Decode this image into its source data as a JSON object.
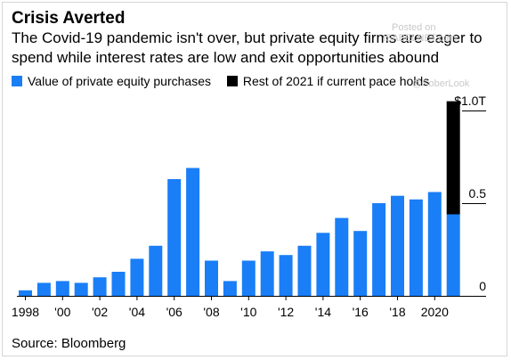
{
  "header": {
    "title": "Crisis Averted",
    "subtitle": "The Covid-19 pandemic isn't over, but private equity firms are eager to spend while interest rates are low and exit opportunities abound"
  },
  "legend": [
    {
      "label": "Value of private equity purchases",
      "color": "#1a7ef7"
    },
    {
      "label": "Rest of 2021 if current pace holds",
      "color": "#000000"
    }
  ],
  "watermark": {
    "line1": "Posted on",
    "line2": "ISABELNET.com",
    "line3": "@SoberLook"
  },
  "footer": {
    "source": "Source: Bloomberg"
  },
  "chart_data": {
    "type": "bar",
    "stacked": true,
    "categories": [
      "1998",
      "1999",
      "2000",
      "2001",
      "2002",
      "2003",
      "2004",
      "2005",
      "2006",
      "2007",
      "2008",
      "2009",
      "2010",
      "2011",
      "2012",
      "2013",
      "2014",
      "2015",
      "2016",
      "2017",
      "2018",
      "2019",
      "2020",
      "2021"
    ],
    "x_tick_labels": [
      "1998",
      "'00",
      "'02",
      "'04",
      "'06",
      "'08",
      "'10",
      "'12",
      "'14",
      "'16",
      "'18",
      "2020"
    ],
    "series": [
      {
        "name": "Value of private equity purchases",
        "color": "#1a7ef7",
        "values": [
          0.03,
          0.07,
          0.08,
          0.07,
          0.1,
          0.13,
          0.2,
          0.27,
          0.63,
          0.69,
          0.19,
          0.08,
          0.19,
          0.24,
          0.22,
          0.27,
          0.34,
          0.42,
          0.35,
          0.5,
          0.54,
          0.52,
          0.56,
          0.44
        ]
      },
      {
        "name": "Rest of 2021 if current pace holds",
        "color": "#000000",
        "values": [
          0,
          0,
          0,
          0,
          0,
          0,
          0,
          0,
          0,
          0,
          0,
          0,
          0,
          0,
          0,
          0,
          0,
          0,
          0,
          0,
          0,
          0,
          0,
          0.61
        ]
      }
    ],
    "y_ticks": [
      {
        "value": 0,
        "label": "0"
      },
      {
        "value": 0.5,
        "label": "0.5"
      },
      {
        "value": 1.0,
        "label": "$1.0T"
      }
    ],
    "ylim": [
      0,
      1.1
    ],
    "grid": false,
    "legend_position": "top-left"
  }
}
